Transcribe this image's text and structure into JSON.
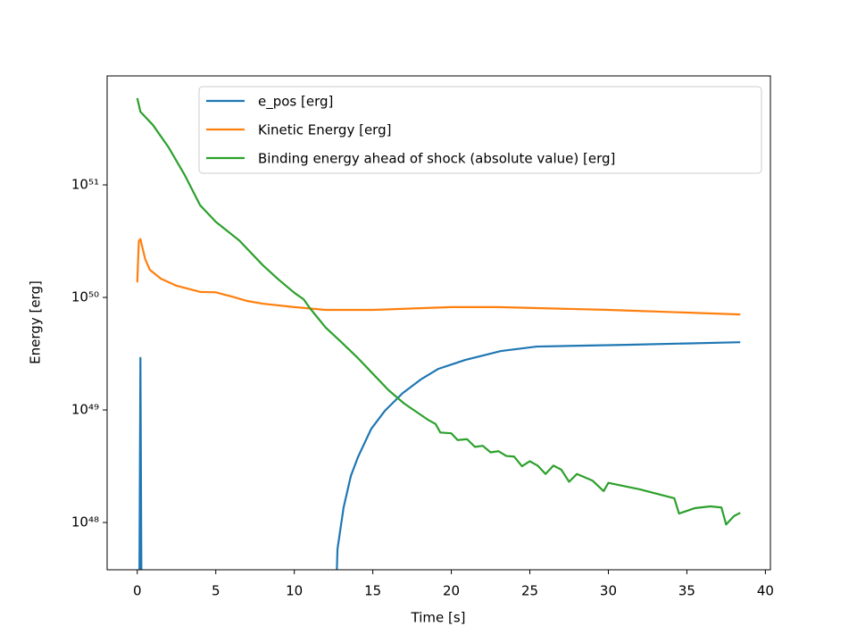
{
  "chart_data": {
    "type": "line",
    "x_label": "Time [s]",
    "y_label": "Energy [erg]",
    "log_y": true,
    "xlim": [
      -1.92,
      40.32
    ],
    "ylim": [
      3.8e+47,
      9.3e+51
    ],
    "xticks": [
      0,
      5,
      10,
      15,
      20,
      25,
      30,
      35,
      40
    ],
    "yticks": [
      {
        "value": 1e+48,
        "label": "10⁴⁸"
      },
      {
        "value": 1e+49,
        "label": "10⁴⁹"
      },
      {
        "value": 1e+50,
        "label": "10⁵⁰"
      },
      {
        "value": 1e+51,
        "label": "10⁵¹"
      }
    ],
    "legend": "upper right",
    "series": [
      {
        "name": "e_pos [erg]",
        "color": "#1f77b4",
        "x": [
          0.12,
          0.2,
          0.28,
          5,
          12.69,
          12.75,
          13.14,
          13.6,
          14.05,
          14.9,
          15.76,
          16.9,
          18.04,
          19.18,
          20.88,
          23.16,
          25.43,
          31.12,
          38.4
        ],
        "values": [
          1e+47,
          2.9e+49,
          1e+47,
          null,
          3e+47,
          5.8e+47,
          1.36e+48,
          2.59e+48,
          3.8e+48,
          6.8e+48,
          9.8e+48,
          1.41e+49,
          1.86e+49,
          2.32e+49,
          2.78e+49,
          3.34e+49,
          3.66e+49,
          3.79e+49,
          4e+49
        ]
      },
      {
        "name": "Kinetic Energy [erg]",
        "color": "#ff7f0e",
        "x": [
          0,
          0.1,
          0.2,
          0.5,
          0.8,
          1.5,
          2.5,
          4,
          5,
          6,
          7,
          8,
          10,
          12,
          15,
          20,
          23,
          30,
          38.4
        ],
        "values": [
          1.36e+50,
          3.16e+50,
          3.3e+50,
          2.2e+50,
          1.76e+50,
          1.47e+50,
          1.27e+50,
          1.12e+50,
          1.11e+50,
          1.02e+50,
          9.3e+49,
          8.8e+49,
          8.2e+49,
          7.75e+49,
          7.75e+49,
          8.2e+49,
          8.2e+49,
          7.75e+49,
          7.06e+49
        ]
      },
      {
        "name": "Binding energy ahead of shock (absolute value) [erg]",
        "color": "#2ca02c",
        "x": [
          0,
          0.2,
          1,
          2,
          3,
          4,
          5,
          6.5,
          8,
          9,
          10,
          10.6,
          11,
          12,
          13,
          14,
          15,
          16,
          17,
          18.5,
          19,
          19.3,
          20,
          20.4,
          21,
          21.5,
          22,
          22.5,
          23,
          23.5,
          24,
          24.5,
          25,
          25.5,
          26,
          26.5,
          27,
          27.5,
          28,
          29,
          29.7,
          30,
          32,
          34.2,
          34.5,
          35.5,
          36.5,
          37.2,
          37.5,
          38,
          38.4
        ],
        "values": [
          5.9e+51,
          4.47e+51,
          3.4e+51,
          2.15e+51,
          1.24e+51,
          6.6e+50,
          4.7e+50,
          3.2e+50,
          1.93e+50,
          1.44e+50,
          1.1e+50,
          9.6e+49,
          8e+49,
          5.4e+49,
          4e+49,
          2.94e+49,
          2.1e+49,
          1.5e+49,
          1.14e+49,
          8.2e+48,
          7.5e+48,
          6.3e+48,
          6.2e+48,
          5.4e+48,
          5.5e+48,
          4.7e+48,
          4.8e+48,
          4.2e+48,
          4.3e+48,
          3.9e+48,
          3.85e+48,
          3.16e+48,
          3.5e+48,
          3.2e+48,
          2.7e+48,
          3.2e+48,
          2.95e+48,
          2.3e+48,
          2.7e+48,
          2.35e+48,
          1.9e+48,
          2.25e+48,
          1.97e+48,
          1.64e+48,
          1.2e+48,
          1.34e+48,
          1.39e+48,
          1.36e+48,
          9.6e+47,
          1.14e+48,
          1.22e+48
        ]
      }
    ]
  }
}
